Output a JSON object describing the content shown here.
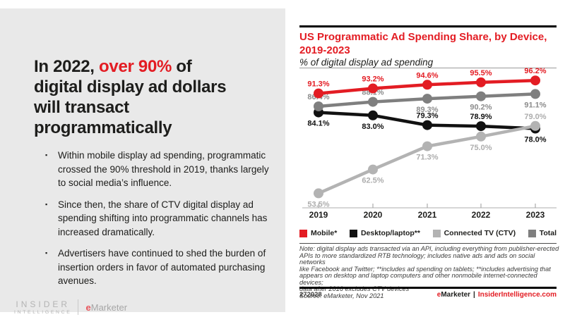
{
  "colors": {
    "accent_red": "#e31c23",
    "panel_gray": "#e9e9e9",
    "text_dark": "#1d1d1b",
    "logo_gray": "#b4b4b4",
    "axis_gray": "#c9c9c9"
  },
  "slide": {
    "headline": {
      "line1_prefix": "In 2022, ",
      "line1_highlight": "over 90%",
      "line1_suffix": " of",
      "line2": "digital display ad dollars",
      "line3": "will transact",
      "line4": "programmatically"
    },
    "bullets": [
      "Within mobile display ad spending, programmatic crossed the 90% threshold in 2019, thanks largely to social media’s influence.",
      "Since then, the share of CTV digital display ad spending shifting into programmatic channels has increased dramatically.",
      "Advertisers have continued to shed the burden of insertion orders in favor of automated purchasing avenues."
    ],
    "logo": {
      "insider_line1": "INSIDER",
      "insider_line2": "INTELLIGENCE",
      "emarketer_e": "e",
      "emarketer_rest": "Marketer"
    }
  },
  "chart": {
    "title": "US Programmatic Ad Spending Share, by Device, 2019-2023",
    "subtitle": "% of digital display ad spending",
    "note_lines": [
      "Note: digital display ads transacted via an API, including everything from publisher-erected",
      "APIs to more standardized RTB technology; includes native ads and ads on social networks",
      "like Facebook and Twitter; **includes ad spending on tablets; **includes advertising that",
      "appears on desktop and laptop computers and other nonmobile internet-connected devices;",
      "data after 2016 excludes CTV devices"
    ],
    "source": "Source: eMarketer, Nov 2021",
    "chart_id": "272028",
    "footer_brand": {
      "name_e": "e",
      "name_rest": "Marketer",
      "separator": "|",
      "site": "InsiderIntelligence.com"
    }
  },
  "chart_data": {
    "type": "line",
    "title": "US Programmatic Ad Spending Share, by Device, 2019-2023",
    "ylabel": "% of digital display ad spending",
    "x": [
      "2019",
      "2020",
      "2021",
      "2022",
      "2023"
    ],
    "ylim": [
      48,
      100
    ],
    "grid": false,
    "legend_position": "bottom",
    "series": [
      {
        "name": "Mobile*",
        "color": "#e31c23",
        "label_color": "#e31c23",
        "values": [
          91.3,
          93.2,
          94.6,
          95.5,
          96.2
        ],
        "label_pos": [
          "above",
          "above",
          "above",
          "above",
          "above"
        ]
      },
      {
        "name": "Desktop/laptop**",
        "color": "#111111",
        "label_color": "#111111",
        "values": [
          84.1,
          83.0,
          79.3,
          78.9,
          78.0
        ],
        "label_pos": [
          "below",
          "below",
          "above",
          "above",
          "below"
        ]
      },
      {
        "name": "Connected TV (CTV)",
        "color": "#b3b3b3",
        "label_color": "#adadad",
        "values": [
          53.5,
          62.5,
          71.3,
          75.0,
          79.0
        ],
        "label_pos": [
          "below",
          "below",
          "below",
          "below",
          "above"
        ]
      },
      {
        "name": "Total",
        "color": "#7f7f7f",
        "label_color": "#8c8c8c",
        "values": [
          86.4,
          88.1,
          89.3,
          90.2,
          91.1
        ],
        "label_pos": [
          "above",
          "above",
          "below",
          "below",
          "below"
        ]
      }
    ]
  }
}
